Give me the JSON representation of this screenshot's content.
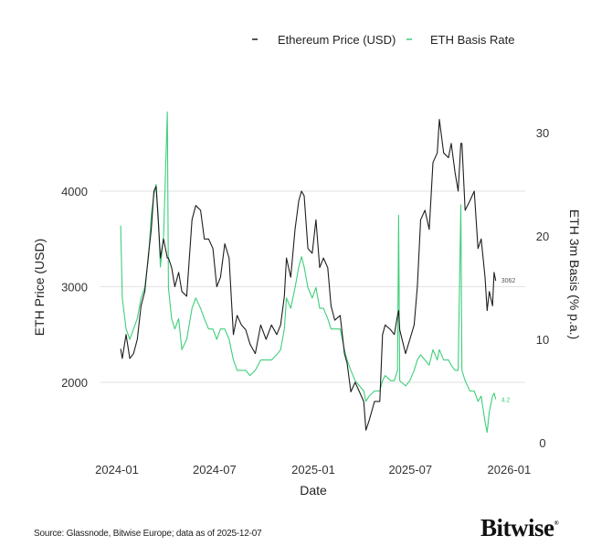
{
  "chart_data": {
    "type": "line",
    "title": "",
    "xlabel": "Date",
    "ylabel_left": "ETH Price (USD)",
    "ylabel_right": "ETH 3m Basis (% p.a.)",
    "x_ticks": [
      "2024-01",
      "2024-07",
      "2025-01",
      "2025-07",
      "2026-01"
    ],
    "y_left_ticks": [
      2000,
      3000,
      4000
    ],
    "y_right_ticks": [
      0,
      10,
      20,
      30
    ],
    "grid": "horizontal at left-axis ticks",
    "legend_placement": "top-right",
    "colors": {
      "price": "#1e1e1e",
      "basis": "#3ecf7a"
    },
    "end_labels": {
      "price": "3062",
      "basis": "4.2"
    },
    "series": [
      {
        "name": "Ethereum Price (USD)",
        "axis": "left"
      },
      {
        "name": "ETH Basis Rate",
        "axis": "right"
      }
    ],
    "points": [
      [
        "2024-01-08",
        2350,
        21
      ],
      [
        "2024-01-11",
        2250,
        14
      ],
      [
        "2024-01-18",
        2500,
        11
      ],
      [
        "2024-01-25",
        2250,
        10
      ],
      [
        "2024-02-01",
        2300,
        11
      ],
      [
        "2024-02-08",
        2450,
        12
      ],
      [
        "2024-02-15",
        2800,
        14
      ],
      [
        "2024-02-22",
        2950,
        15
      ],
      [
        "2024-02-29",
        3350,
        18
      ],
      [
        "2024-03-05",
        3600,
        22
      ],
      [
        "2024-03-10",
        4000,
        24
      ],
      [
        "2024-03-14",
        4050,
        25
      ],
      [
        "2024-03-18",
        3700,
        22
      ],
      [
        "2024-03-22",
        3300,
        17
      ],
      [
        "2024-03-28",
        3500,
        20
      ],
      [
        "2024-04-04",
        3300,
        32
      ],
      [
        "2024-04-06",
        3300,
        15
      ],
      [
        "2024-04-12",
        3200,
        12
      ],
      [
        "2024-04-18",
        3000,
        11
      ],
      [
        "2024-04-25",
        3150,
        12
      ],
      [
        "2024-05-01",
        2950,
        9
      ],
      [
        "2024-05-10",
        2900,
        10
      ],
      [
        "2024-05-20",
        3700,
        13
      ],
      [
        "2024-05-27",
        3850,
        14
      ],
      [
        "2024-06-05",
        3800,
        13
      ],
      [
        "2024-06-12",
        3500,
        12
      ],
      [
        "2024-06-20",
        3500,
        11
      ],
      [
        "2024-06-28",
        3400,
        11
      ],
      [
        "2024-07-05",
        3000,
        10
      ],
      [
        "2024-07-12",
        3100,
        11
      ],
      [
        "2024-07-20",
        3450,
        11
      ],
      [
        "2024-07-28",
        3300,
        10
      ],
      [
        "2024-08-05",
        2500,
        8
      ],
      [
        "2024-08-12",
        2700,
        7
      ],
      [
        "2024-08-20",
        2600,
        7
      ],
      [
        "2024-08-28",
        2550,
        7
      ],
      [
        "2024-09-05",
        2400,
        6.5
      ],
      [
        "2024-09-15",
        2300,
        7
      ],
      [
        "2024-09-25",
        2600,
        8
      ],
      [
        "2024-10-05",
        2450,
        8
      ],
      [
        "2024-10-15",
        2600,
        8
      ],
      [
        "2024-10-25",
        2500,
        8.5
      ],
      [
        "2024-11-01",
        2600,
        9
      ],
      [
        "2024-11-08",
        2900,
        11
      ],
      [
        "2024-11-12",
        3300,
        14
      ],
      [
        "2024-11-20",
        3100,
        13
      ],
      [
        "2024-11-28",
        3600,
        15
      ],
      [
        "2024-12-05",
        3900,
        17
      ],
      [
        "2024-12-10",
        4000,
        18
      ],
      [
        "2024-12-15",
        3950,
        17
      ],
      [
        "2024-12-22",
        3400,
        15
      ],
      [
        "2024-12-30",
        3350,
        14
      ],
      [
        "2025-01-06",
        3700,
        15
      ],
      [
        "2025-01-13",
        3200,
        13
      ],
      [
        "2025-01-20",
        3300,
        13
      ],
      [
        "2025-01-28",
        3200,
        12
      ],
      [
        "2025-02-03",
        2800,
        11
      ],
      [
        "2025-02-10",
        2650,
        11
      ],
      [
        "2025-02-20",
        2700,
        11
      ],
      [
        "2025-02-28",
        2300,
        9
      ],
      [
        "2025-03-05",
        2200,
        8
      ],
      [
        "2025-03-12",
        1900,
        7
      ],
      [
        "2025-03-20",
        2000,
        6
      ],
      [
        "2025-03-28",
        1900,
        5.5
      ],
      [
        "2025-04-05",
        1800,
        5
      ],
      [
        "2025-04-09",
        1500,
        4
      ],
      [
        "2025-04-15",
        1600,
        4.5
      ],
      [
        "2025-04-25",
        1800,
        5
      ],
      [
        "2025-05-05",
        1800,
        5
      ],
      [
        "2025-05-10",
        2500,
        6
      ],
      [
        "2025-05-15",
        2600,
        6.5
      ],
      [
        "2025-05-25",
        2550,
        6
      ],
      [
        "2025-06-01",
        2500,
        6
      ],
      [
        "2025-06-07",
        2700,
        7
      ],
      [
        "2025-06-09",
        2750,
        22
      ],
      [
        "2025-06-11",
        2550,
        6
      ],
      [
        "2025-06-22",
        2300,
        5.5
      ],
      [
        "2025-06-30",
        2450,
        6
      ],
      [
        "2025-07-08",
        2600,
        7
      ],
      [
        "2025-07-14",
        3000,
        8
      ],
      [
        "2025-07-20",
        3700,
        8.5
      ],
      [
        "2025-07-28",
        3800,
        8
      ],
      [
        "2025-08-05",
        3600,
        7.5
      ],
      [
        "2025-08-12",
        4300,
        9
      ],
      [
        "2025-08-20",
        4400,
        8
      ],
      [
        "2025-08-24",
        4750,
        9
      ],
      [
        "2025-09-01",
        4400,
        8
      ],
      [
        "2025-09-10",
        4350,
        8
      ],
      [
        "2025-09-15",
        4500,
        7.5
      ],
      [
        "2025-09-22",
        4200,
        7
      ],
      [
        "2025-09-28",
        4000,
        7
      ],
      [
        "2025-10-03",
        4500,
        23
      ],
      [
        "2025-10-05",
        4500,
        7
      ],
      [
        "2025-10-11",
        3800,
        6
      ],
      [
        "2025-10-20",
        3900,
        5
      ],
      [
        "2025-10-28",
        4000,
        5
      ],
      [
        "2025-11-04",
        3400,
        4
      ],
      [
        "2025-11-10",
        3500,
        4.5
      ],
      [
        "2025-11-17",
        3100,
        2
      ],
      [
        "2025-11-21",
        2750,
        1
      ],
      [
        "2025-11-25",
        2950,
        3
      ],
      [
        "2025-12-01",
        2800,
        4.5
      ],
      [
        "2025-12-04",
        3150,
        4.8
      ],
      [
        "2025-12-07",
        3062,
        4.2
      ]
    ]
  },
  "footer": {
    "source": "Source: Glassnode, Bitwise Europe; data as of 2025-12-07",
    "logo": "Bitwise"
  }
}
